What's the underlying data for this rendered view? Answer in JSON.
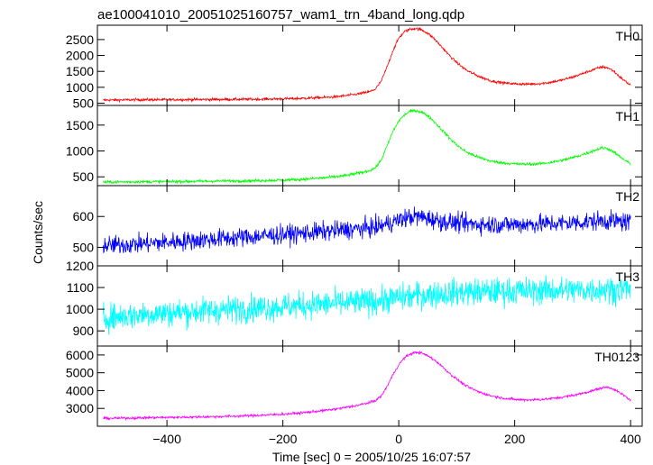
{
  "chart_data": {
    "type": "line",
    "title": "ae100041010_20051025160757_wam1_trn_4band_long.qdp",
    "xlabel": "Time [sec] 0 = 2005/10/25 16:07:57",
    "ylabel": "Counts/sec",
    "xlim": [
      -520,
      420
    ],
    "xticks": [
      -400,
      -200,
      0,
      200,
      400
    ],
    "x_samples": [
      -510,
      -490,
      -470,
      -450,
      -430,
      -410,
      -390,
      -370,
      -350,
      -330,
      -310,
      -290,
      -270,
      -250,
      -230,
      -210,
      -190,
      -170,
      -150,
      -130,
      -110,
      -90,
      -70,
      -50,
      -40,
      -30,
      -20,
      -10,
      0,
      10,
      20,
      30,
      40,
      50,
      60,
      70,
      80,
      90,
      100,
      110,
      120,
      140,
      160,
      180,
      200,
      220,
      240,
      260,
      280,
      300,
      320,
      340,
      350,
      360,
      370,
      380,
      390,
      400
    ],
    "panels": [
      {
        "label": "TH0",
        "color": "#ff0000",
        "ylim": [
          430,
          2950
        ],
        "yticks": [
          500,
          1000,
          1500,
          2000,
          2500
        ],
        "noise": 30,
        "values": [
          600,
          600,
          605,
          610,
          610,
          610,
          612,
          615,
          615,
          618,
          620,
          620,
          622,
          625,
          630,
          635,
          640,
          650,
          665,
          680,
          700,
          740,
          790,
          860,
          950,
          1200,
          1650,
          2150,
          2550,
          2750,
          2830,
          2850,
          2800,
          2700,
          2550,
          2350,
          2150,
          1950,
          1780,
          1630,
          1500,
          1330,
          1200,
          1140,
          1110,
          1100,
          1110,
          1150,
          1220,
          1320,
          1450,
          1580,
          1640,
          1620,
          1520,
          1350,
          1200,
          1070
        ]
      },
      {
        "label": "TH1",
        "color": "#00ff00",
        "ylim": [
          330,
          1880
        ],
        "yticks": [
          500,
          1000,
          1500
        ],
        "noise": 20,
        "values": [
          400,
          400,
          402,
          405,
          405,
          408,
          410,
          412,
          412,
          415,
          418,
          420,
          422,
          425,
          430,
          435,
          440,
          450,
          465,
          480,
          500,
          530,
          570,
          620,
          680,
          830,
          1100,
          1380,
          1580,
          1700,
          1770,
          1780,
          1750,
          1680,
          1580,
          1460,
          1340,
          1220,
          1120,
          1030,
          960,
          870,
          800,
          770,
          750,
          745,
          750,
          775,
          815,
          870,
          940,
          1020,
          1060,
          1050,
          990,
          900,
          820,
          750
        ]
      },
      {
        "label": "TH2",
        "color": "#0000ff",
        "ylim": [
          440,
          700
        ],
        "yticks": [
          500,
          600
        ],
        "noise": 22,
        "values": [
          505,
          507,
          509,
          511,
          513,
          515,
          518,
          520,
          523,
          525,
          528,
          530,
          533,
          535,
          538,
          540,
          543,
          545,
          548,
          551,
          554,
          557,
          560,
          563,
          565,
          570,
          576,
          582,
          588,
          594,
          598,
          600,
          598,
          594,
          590,
          586,
          583,
          581,
          579,
          577,
          576,
          575,
          574,
          574,
          574,
          575,
          576,
          577,
          578,
          580,
          582,
          585,
          586,
          586,
          585,
          584,
          582,
          580
        ]
      },
      {
        "label": "TH3",
        "color": "#00ffff",
        "ylim": [
          830,
          1200
        ],
        "yticks": [
          900,
          1000,
          1100,
          1200
        ],
        "noise": 45,
        "values": [
          960,
          965,
          970,
          975,
          978,
          981,
          984,
          987,
          990,
          993,
          996,
          999,
          1002,
          1005,
          1008,
          1011,
          1014,
          1017,
          1020,
          1023,
          1026,
          1029,
          1032,
          1035,
          1037,
          1040,
          1044,
          1048,
          1052,
          1056,
          1060,
          1063,
          1065,
          1067,
          1069,
          1071,
          1073,
          1075,
          1077,
          1078,
          1079,
          1080,
          1081,
          1082,
          1083,
          1084,
          1085,
          1086,
          1087,
          1088,
          1089,
          1090,
          1091,
          1091,
          1092,
          1092,
          1093,
          1093
        ]
      },
      {
        "label": "TH0123",
        "color": "#ff00ff",
        "ylim": [
          2000,
          6500
        ],
        "yticks": [
          3000,
          4000,
          5000,
          6000
        ],
        "noise": 50,
        "values": [
          2450,
          2450,
          2460,
          2470,
          2480,
          2490,
          2500,
          2510,
          2520,
          2530,
          2545,
          2560,
          2580,
          2600,
          2630,
          2660,
          2700,
          2750,
          2810,
          2880,
          2960,
          3060,
          3180,
          3330,
          3450,
          3700,
          4250,
          4900,
          5450,
          5850,
          6050,
          6150,
          6100,
          5950,
          5750,
          5500,
          5200,
          4900,
          4650,
          4400,
          4200,
          3900,
          3700,
          3580,
          3500,
          3480,
          3490,
          3540,
          3620,
          3730,
          3870,
          4050,
          4150,
          4200,
          4100,
          3900,
          3700,
          3450
        ]
      }
    ]
  }
}
